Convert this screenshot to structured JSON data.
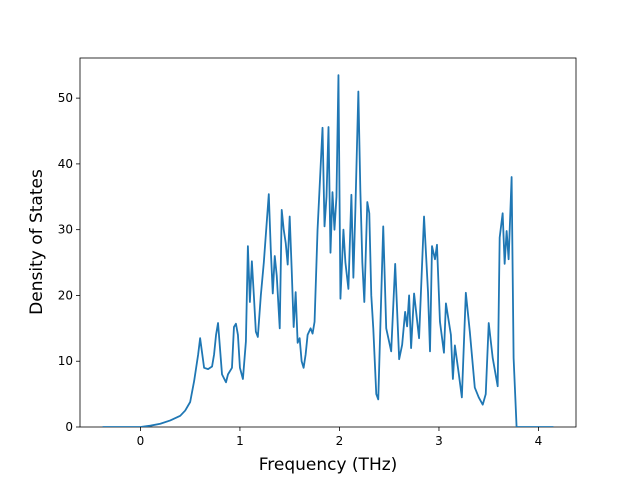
{
  "chart_data": {
    "type": "line",
    "x_label": "Frequency (THz)",
    "y_label": "Density of States",
    "xlim": [
      -0.607,
      4.377
    ],
    "ylim": [
      0,
      56.1
    ],
    "xticks": [
      0,
      1,
      2,
      3,
      4
    ],
    "yticks": [
      0,
      10,
      20,
      30,
      40,
      50
    ],
    "series": [
      {
        "color": "#1f77b4",
        "x": [
          -0.38,
          0.0,
          0.1,
          0.2,
          0.3,
          0.4,
          0.45,
          0.5,
          0.54,
          0.58,
          0.6,
          0.64,
          0.68,
          0.72,
          0.74,
          0.76,
          0.78,
          0.82,
          0.86,
          0.88,
          0.92,
          0.94,
          0.96,
          0.98,
          1.0,
          1.03,
          1.06,
          1.08,
          1.1,
          1.12,
          1.14,
          1.16,
          1.18,
          1.21,
          1.24,
          1.29,
          1.31,
          1.33,
          1.35,
          1.37,
          1.4,
          1.42,
          1.44,
          1.46,
          1.48,
          1.5,
          1.52,
          1.54,
          1.56,
          1.58,
          1.6,
          1.62,
          1.64,
          1.66,
          1.68,
          1.71,
          1.73,
          1.75,
          1.78,
          1.83,
          1.85,
          1.87,
          1.89,
          1.91,
          1.93,
          1.95,
          1.97,
          1.99,
          2.01,
          2.04,
          2.06,
          2.09,
          2.12,
          2.14,
          2.16,
          2.19,
          2.21,
          2.23,
          2.25,
          2.28,
          2.3,
          2.32,
          2.34,
          2.37,
          2.39,
          2.42,
          2.44,
          2.47,
          2.52,
          2.56,
          2.6,
          2.63,
          2.66,
          2.68,
          2.7,
          2.72,
          2.75,
          2.8,
          2.85,
          2.89,
          2.91,
          2.93,
          2.96,
          2.98,
          3.01,
          3.05,
          3.07,
          3.12,
          3.14,
          3.16,
          3.2,
          3.23,
          3.27,
          3.31,
          3.36,
          3.4,
          3.44,
          3.47,
          3.5,
          3.54,
          3.59,
          3.61,
          3.64,
          3.66,
          3.68,
          3.7,
          3.73,
          3.75,
          3.78,
          4.15
        ],
        "values": [
          0,
          0,
          0.2,
          0.5,
          1.0,
          1.7,
          2.5,
          3.8,
          7,
          11,
          13.5,
          9,
          8.8,
          9.2,
          11,
          14,
          15.8,
          8,
          6.8,
          8,
          9,
          15.2,
          15.7,
          14,
          9,
          7.3,
          13,
          27.5,
          19,
          25.2,
          20,
          14.5,
          13.7,
          20,
          25,
          35.4,
          27,
          20.3,
          26,
          23,
          15,
          33,
          30,
          28,
          24.7,
          32,
          24,
          15.2,
          20.5,
          12.8,
          13.5,
          10,
          9,
          11,
          14,
          15,
          14.2,
          16,
          30,
          45.5,
          30.5,
          35,
          45.6,
          26.5,
          35.7,
          30,
          35,
          53.5,
          19.5,
          30,
          25,
          21,
          35.3,
          22.7,
          33,
          51,
          36,
          25,
          19,
          34.2,
          32.5,
          20,
          15,
          5,
          4.2,
          20,
          30.5,
          15,
          11.5,
          24.8,
          10.3,
          12.5,
          17.5,
          15.3,
          20,
          12,
          20.3,
          13.5,
          32,
          20.5,
          11.5,
          27.5,
          25.5,
          27.7,
          16,
          11.3,
          18.8,
          14,
          7.3,
          12.4,
          8,
          4.5,
          20.4,
          14.5,
          6,
          4.5,
          3.4,
          5,
          15.8,
          10.5,
          6.2,
          28.8,
          32.5,
          24.8,
          29.8,
          25.5,
          38,
          10.5,
          0,
          0
        ]
      }
    ]
  }
}
